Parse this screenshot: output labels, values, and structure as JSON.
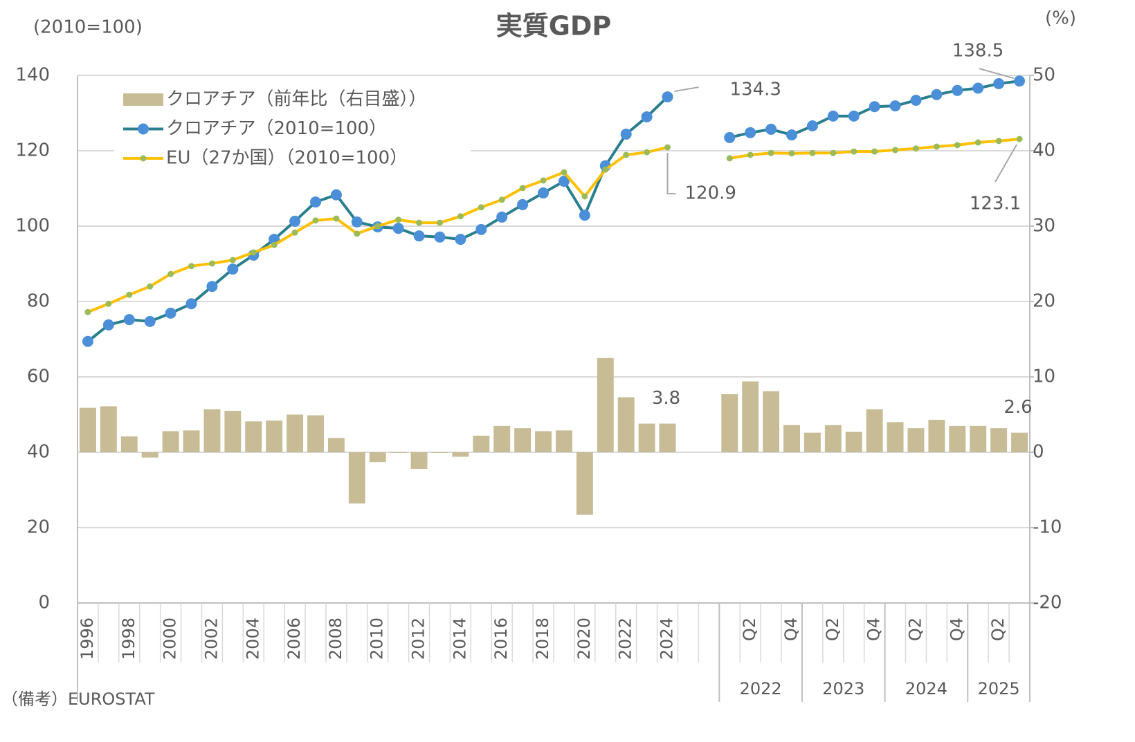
{
  "chart_data": {
    "type": "combo",
    "title": "実質GDP",
    "y_label": "(2010=100)",
    "y2_label": "(%)",
    "note": "（備考）EUROSTAT",
    "categories": [
      "1996",
      null,
      "1998",
      null,
      "2000",
      null,
      "2002",
      null,
      "2004",
      null,
      "2006",
      null,
      "2008",
      null,
      "2010",
      null,
      "2012",
      null,
      "2014",
      null,
      "2016",
      null,
      "2018",
      null,
      "2020",
      null,
      "2022",
      null,
      "2024",
      null,
      null,
      null,
      "Q2",
      null,
      "Q4",
      null,
      "Q2",
      null,
      "Q4",
      null,
      "Q2",
      null,
      "Q4",
      null,
      "Q2",
      null
    ],
    "groups": [
      {
        "label": "2022",
        "size": 4
      },
      {
        "label": "2023",
        "size": 4
      },
      {
        "label": "2024",
        "size": 4
      },
      {
        "label": "2025",
        "size": 3
      }
    ],
    "ylim": [
      0,
      140
    ],
    "yticks": [
      0,
      20,
      40,
      60,
      80,
      100,
      120,
      140
    ],
    "y2lim": [
      -20,
      50
    ],
    "y2ticks": [
      -20,
      -10,
      0,
      10,
      20,
      30,
      40,
      50
    ],
    "grid": true,
    "series": [
      {
        "name": "クロアチア（前年比（右目盛））",
        "type": "bar",
        "axis": "y2",
        "color": "#c8bc96",
        "values": [
          5.9,
          6.1,
          2.1,
          -0.7,
          2.8,
          2.9,
          5.7,
          5.5,
          4.1,
          4.2,
          5.0,
          4.9,
          1.9,
          -6.8,
          -1.3,
          -0.1,
          -2.2,
          -0.1,
          -0.6,
          2.2,
          3.5,
          3.2,
          2.8,
          2.9,
          -8.3,
          12.5,
          7.3,
          3.8,
          3.8,
          null,
          null,
          7.7,
          9.4,
          8.1,
          3.6,
          2.6,
          3.6,
          2.7,
          5.7,
          4.0,
          3.2,
          4.3,
          3.5,
          3.5,
          3.2,
          2.6
        ],
        "value_labels": [
          null,
          null,
          null,
          null,
          null,
          null,
          null,
          null,
          null,
          null,
          null,
          null,
          null,
          null,
          null,
          null,
          null,
          null,
          null,
          null,
          null,
          null,
          null,
          null,
          null,
          null,
          null,
          null,
          "3.8",
          null,
          null,
          null,
          null,
          null,
          null,
          null,
          null,
          null,
          null,
          null,
          null,
          null,
          null,
          null,
          null,
          "2.6"
        ]
      },
      {
        "name": "クロアチア（2010=100）",
        "type": "line",
        "color": "#2a7f8f",
        "marker_color": "#4a8fd8",
        "values": [
          69.4,
          73.8,
          75.2,
          74.7,
          76.9,
          79.4,
          84.0,
          88.6,
          92.3,
          96.5,
          101.3,
          106.4,
          108.3,
          101.1,
          99.8,
          99.4,
          97.4,
          97.1,
          96.5,
          99.1,
          102.4,
          105.7,
          108.8,
          111.9,
          102.9,
          116.0,
          124.4,
          129.0,
          134.3,
          null,
          null,
          123.5,
          124.8,
          125.7,
          124.2,
          126.6,
          129.2,
          129.2,
          131.7,
          131.9,
          133.4,
          134.9,
          136.0,
          136.6,
          137.8,
          138.5
        ],
        "value_labels": [
          null,
          null,
          null,
          null,
          null,
          null,
          null,
          null,
          null,
          null,
          null,
          null,
          null,
          null,
          null,
          null,
          null,
          null,
          null,
          null,
          null,
          null,
          null,
          null,
          null,
          null,
          null,
          null,
          "134.3",
          null,
          null,
          null,
          null,
          null,
          null,
          null,
          null,
          null,
          null,
          null,
          null,
          null,
          null,
          null,
          null,
          "138.5"
        ]
      },
      {
        "name": "EU（27か国）（2010=100）",
        "type": "line",
        "color": "#ffc000",
        "marker_color": "#9bbb59",
        "values": [
          77.2,
          79.4,
          81.8,
          84.0,
          87.3,
          89.4,
          90.1,
          91.0,
          93.0,
          95.0,
          98.3,
          101.5,
          102.0,
          98.0,
          100.0,
          101.7,
          100.9,
          100.9,
          102.6,
          105.0,
          107.0,
          110.1,
          112.1,
          114.3,
          107.9,
          115.0,
          118.9,
          119.6,
          120.9,
          null,
          null,
          118.0,
          118.9,
          119.4,
          119.3,
          119.4,
          119.4,
          119.8,
          119.8,
          120.2,
          120.6,
          121.1,
          121.5,
          122.2,
          122.6,
          123.1
        ],
        "value_labels": [
          null,
          null,
          null,
          null,
          null,
          null,
          null,
          null,
          null,
          null,
          null,
          null,
          null,
          null,
          null,
          null,
          null,
          null,
          null,
          null,
          null,
          null,
          null,
          null,
          null,
          null,
          null,
          null,
          "120.9",
          null,
          null,
          null,
          null,
          null,
          null,
          null,
          null,
          null,
          null,
          null,
          null,
          null,
          null,
          null,
          null,
          "123.1"
        ]
      }
    ]
  }
}
